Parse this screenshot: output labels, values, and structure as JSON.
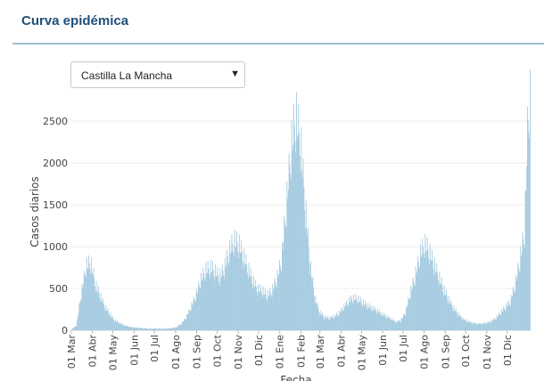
{
  "panel": {
    "title": "Curva epidémica"
  },
  "region_select": {
    "value": "Castilla La Mancha",
    "arrow_icon": "caret-down-icon"
  },
  "chart_data": {
    "type": "bar",
    "ylabel": "Casos diarios",
    "xlabel": "Fecha",
    "ylim": [
      0,
      2800
    ],
    "yticks": [
      0,
      500,
      1000,
      1500,
      2000,
      2500
    ],
    "grid": true,
    "bar_color": "#a6cbe0",
    "x_range": [
      "2020-03-01",
      "2022-01-03"
    ],
    "x_ticks": [
      {
        "date": "2020-03-01",
        "label": "01 Mar"
      },
      {
        "date": "2020-04-01",
        "label": "01 Abr"
      },
      {
        "date": "2020-05-01",
        "label": "01 May"
      },
      {
        "date": "2020-06-01",
        "label": "01 Jun"
      },
      {
        "date": "2020-07-01",
        "label": "01 Jul"
      },
      {
        "date": "2020-08-01",
        "label": "01 Ago"
      },
      {
        "date": "2020-09-01",
        "label": "01 Sep"
      },
      {
        "date": "2020-10-01",
        "label": "01 Oct"
      },
      {
        "date": "2020-11-01",
        "label": "01 Nov"
      },
      {
        "date": "2020-12-01",
        "label": "01 Dic"
      },
      {
        "date": "2021-01-01",
        "label": "01 Ene"
      },
      {
        "date": "2021-02-01",
        "label": "01 Feb"
      },
      {
        "date": "2021-03-01",
        "label": "01 Mar"
      },
      {
        "date": "2021-04-01",
        "label": "01 Abr"
      },
      {
        "date": "2021-05-01",
        "label": "01 May"
      },
      {
        "date": "2021-06-01",
        "label": "01 Jun"
      },
      {
        "date": "2021-07-01",
        "label": "01 Jul"
      },
      {
        "date": "2021-08-01",
        "label": "01 Ago"
      },
      {
        "date": "2021-09-01",
        "label": "01 Sep"
      },
      {
        "date": "2021-10-01",
        "label": "01 Oct"
      },
      {
        "date": "2021-11-01",
        "label": "01 Nov"
      },
      {
        "date": "2021-12-01",
        "label": "01 Dic"
      }
    ],
    "series": [
      {
        "date": [
          "2020-03-01",
          "2020-03-08",
          "2020-03-15",
          "2020-03-22",
          "2020-03-29",
          "2020-04-05",
          "2020-04-12",
          "2020-04-19",
          "2020-04-26",
          "2020-05-03",
          "2020-05-10",
          "2020-05-17",
          "2020-05-24",
          "2020-05-31",
          "2020-06-07",
          "2020-06-14",
          "2020-06-21",
          "2020-06-28",
          "2020-07-05",
          "2020-07-12",
          "2020-07-19",
          "2020-07-26",
          "2020-08-02",
          "2020-08-09",
          "2020-08-16",
          "2020-08-23",
          "2020-08-30",
          "2020-09-06",
          "2020-09-13",
          "2020-09-20",
          "2020-09-27",
          "2020-10-04",
          "2020-10-11",
          "2020-10-18",
          "2020-10-25",
          "2020-11-01",
          "2020-11-08",
          "2020-11-15",
          "2020-11-22",
          "2020-11-29",
          "2020-12-06",
          "2020-12-13",
          "2020-12-20",
          "2020-12-27",
          "2021-01-03",
          "2021-01-10",
          "2021-01-17",
          "2021-01-24",
          "2021-01-31",
          "2021-02-07",
          "2021-02-14",
          "2021-02-21",
          "2021-02-28",
          "2021-03-07",
          "2021-03-14",
          "2021-03-21",
          "2021-03-28",
          "2021-04-04",
          "2021-04-11",
          "2021-04-18",
          "2021-04-25",
          "2021-05-02",
          "2021-05-09",
          "2021-05-16",
          "2021-05-23",
          "2021-05-30",
          "2021-06-06",
          "2021-06-13",
          "2021-06-20",
          "2021-06-27",
          "2021-07-04",
          "2021-07-11",
          "2021-07-18",
          "2021-07-25",
          "2021-08-01",
          "2021-08-08",
          "2021-08-15",
          "2021-08-22",
          "2021-08-29",
          "2021-09-05",
          "2021-09-12",
          "2021-09-19",
          "2021-09-26",
          "2021-10-03",
          "2021-10-10",
          "2021-10-17",
          "2021-10-24",
          "2021-10-31",
          "2021-11-07",
          "2021-11-14",
          "2021-11-21",
          "2021-11-28",
          "2021-12-05",
          "2021-12-12",
          "2021-12-19",
          "2021-12-26",
          "2021-12-30",
          "2022-01-02"
        ],
        "value": [
          10,
          60,
          450,
          780,
          820,
          550,
          420,
          280,
          200,
          120,
          90,
          60,
          45,
          35,
          30,
          25,
          20,
          20,
          20,
          18,
          22,
          25,
          40,
          80,
          160,
          280,
          420,
          600,
          720,
          760,
          720,
          650,
          750,
          950,
          1080,
          1050,
          900,
          750,
          600,
          500,
          480,
          420,
          480,
          620,
          850,
          1500,
          2200,
          2600,
          2300,
          1500,
          800,
          400,
          220,
          160,
          150,
          170,
          200,
          280,
          350,
          390,
          380,
          340,
          300,
          270,
          240,
          200,
          170,
          140,
          100,
          120,
          220,
          450,
          650,
          900,
          1050,
          950,
          800,
          650,
          500,
          380,
          280,
          200,
          140,
          110,
          90,
          80,
          80,
          90,
          110,
          150,
          220,
          280,
          350,
          550,
          850,
          1200,
          2400,
          2800
        ]
      }
    ]
  }
}
